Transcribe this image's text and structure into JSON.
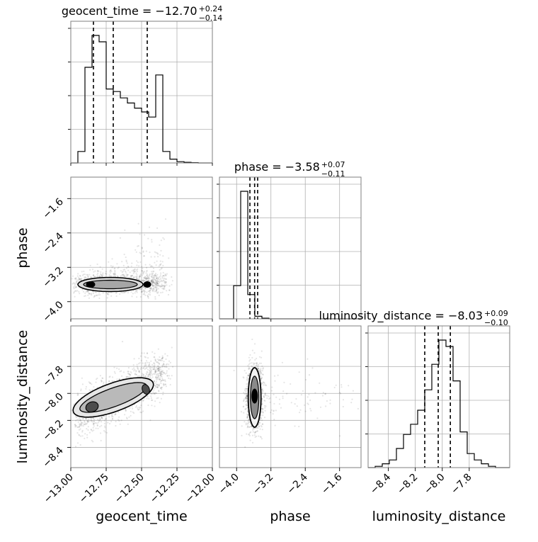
{
  "chart_data": {
    "type": "corner",
    "parameters": [
      "geocent_time",
      "phase",
      "luminosity_distance"
    ],
    "xlabels": [
      "geocent_time",
      "phase",
      "luminosity_distance"
    ],
    "ylabels": [
      "",
      "phase",
      "luminosity_distance"
    ],
    "ranges": {
      "geocent_time": [
        -13.0,
        -12.0
      ],
      "phase": [
        -4.4,
        -1.1
      ],
      "luminosity_distance": [
        -8.55,
        -7.5
      ]
    },
    "ticks": {
      "geocent_time": [
        -13.0,
        -12.75,
        -12.5,
        -12.25,
        -12.0
      ],
      "phase": [
        -4.0,
        -3.2,
        -2.4,
        -1.6
      ],
      "luminosity_distance": [
        -8.4,
        -8.2,
        -8.0,
        -7.8
      ]
    },
    "tick_labels": {
      "geocent_time": [
        "−13.00",
        "−12.75",
        "−12.50",
        "−12.25",
        "−12.00"
      ],
      "phase": [
        "−4.0",
        "−3.2",
        "−2.4",
        "−1.6"
      ],
      "luminosity_distance": [
        "−8.4",
        "−8.2",
        "−8.0",
        "−7.8"
      ]
    },
    "titles": [
      {
        "param": "geocent_time",
        "text": "geocent_time = −12.70",
        "plus": "+0.24",
        "minus": "−0.14"
      },
      {
        "param": "phase",
        "text": "phase = −3.58",
        "plus": "+0.07",
        "minus": "−0.11"
      },
      {
        "param": "luminosity_distance",
        "text": "luminosity_distance = −8.03",
        "plus": "+0.09",
        "minus": "−0.10"
      }
    ],
    "quantiles": {
      "geocent_time": [
        -12.84,
        -12.7,
        -12.46
      ],
      "phase": [
        -3.69,
        -3.58,
        -3.51
      ],
      "luminosity_distance": [
        -8.13,
        -8.03,
        -7.94
      ]
    },
    "histograms": {
      "geocent_time": {
        "edges_start": -13.0,
        "bin_width": 0.05,
        "counts": [
          0.0,
          0.09,
          0.75,
          1.0,
          0.95,
          0.58,
          0.56,
          0.51,
          0.47,
          0.43,
          0.4,
          0.36,
          0.69,
          0.09,
          0.03,
          0.01,
          0.005,
          0.002,
          0.0,
          0.0
        ]
      },
      "phase": {
        "edges_start": -4.4,
        "bin_width": 0.165,
        "counts": [
          0.0,
          0.0,
          0.26,
          1.0,
          0.19,
          0.02,
          0.005,
          0.0,
          0.0,
          0.0,
          0.0,
          0.0,
          0.0,
          0.0,
          0.0,
          0.0,
          0.0,
          0.0,
          0.0,
          0.0
        ]
      },
      "luminosity_distance": {
        "edges_start": -8.55,
        "bin_width": 0.0525,
        "counts": [
          0.0,
          0.01,
          0.03,
          0.06,
          0.15,
          0.26,
          0.34,
          0.45,
          0.61,
          0.81,
          1.0,
          0.95,
          0.68,
          0.28,
          0.11,
          0.06,
          0.03,
          0.01,
          0.0,
          0.0
        ]
      }
    },
    "grid": true
  }
}
